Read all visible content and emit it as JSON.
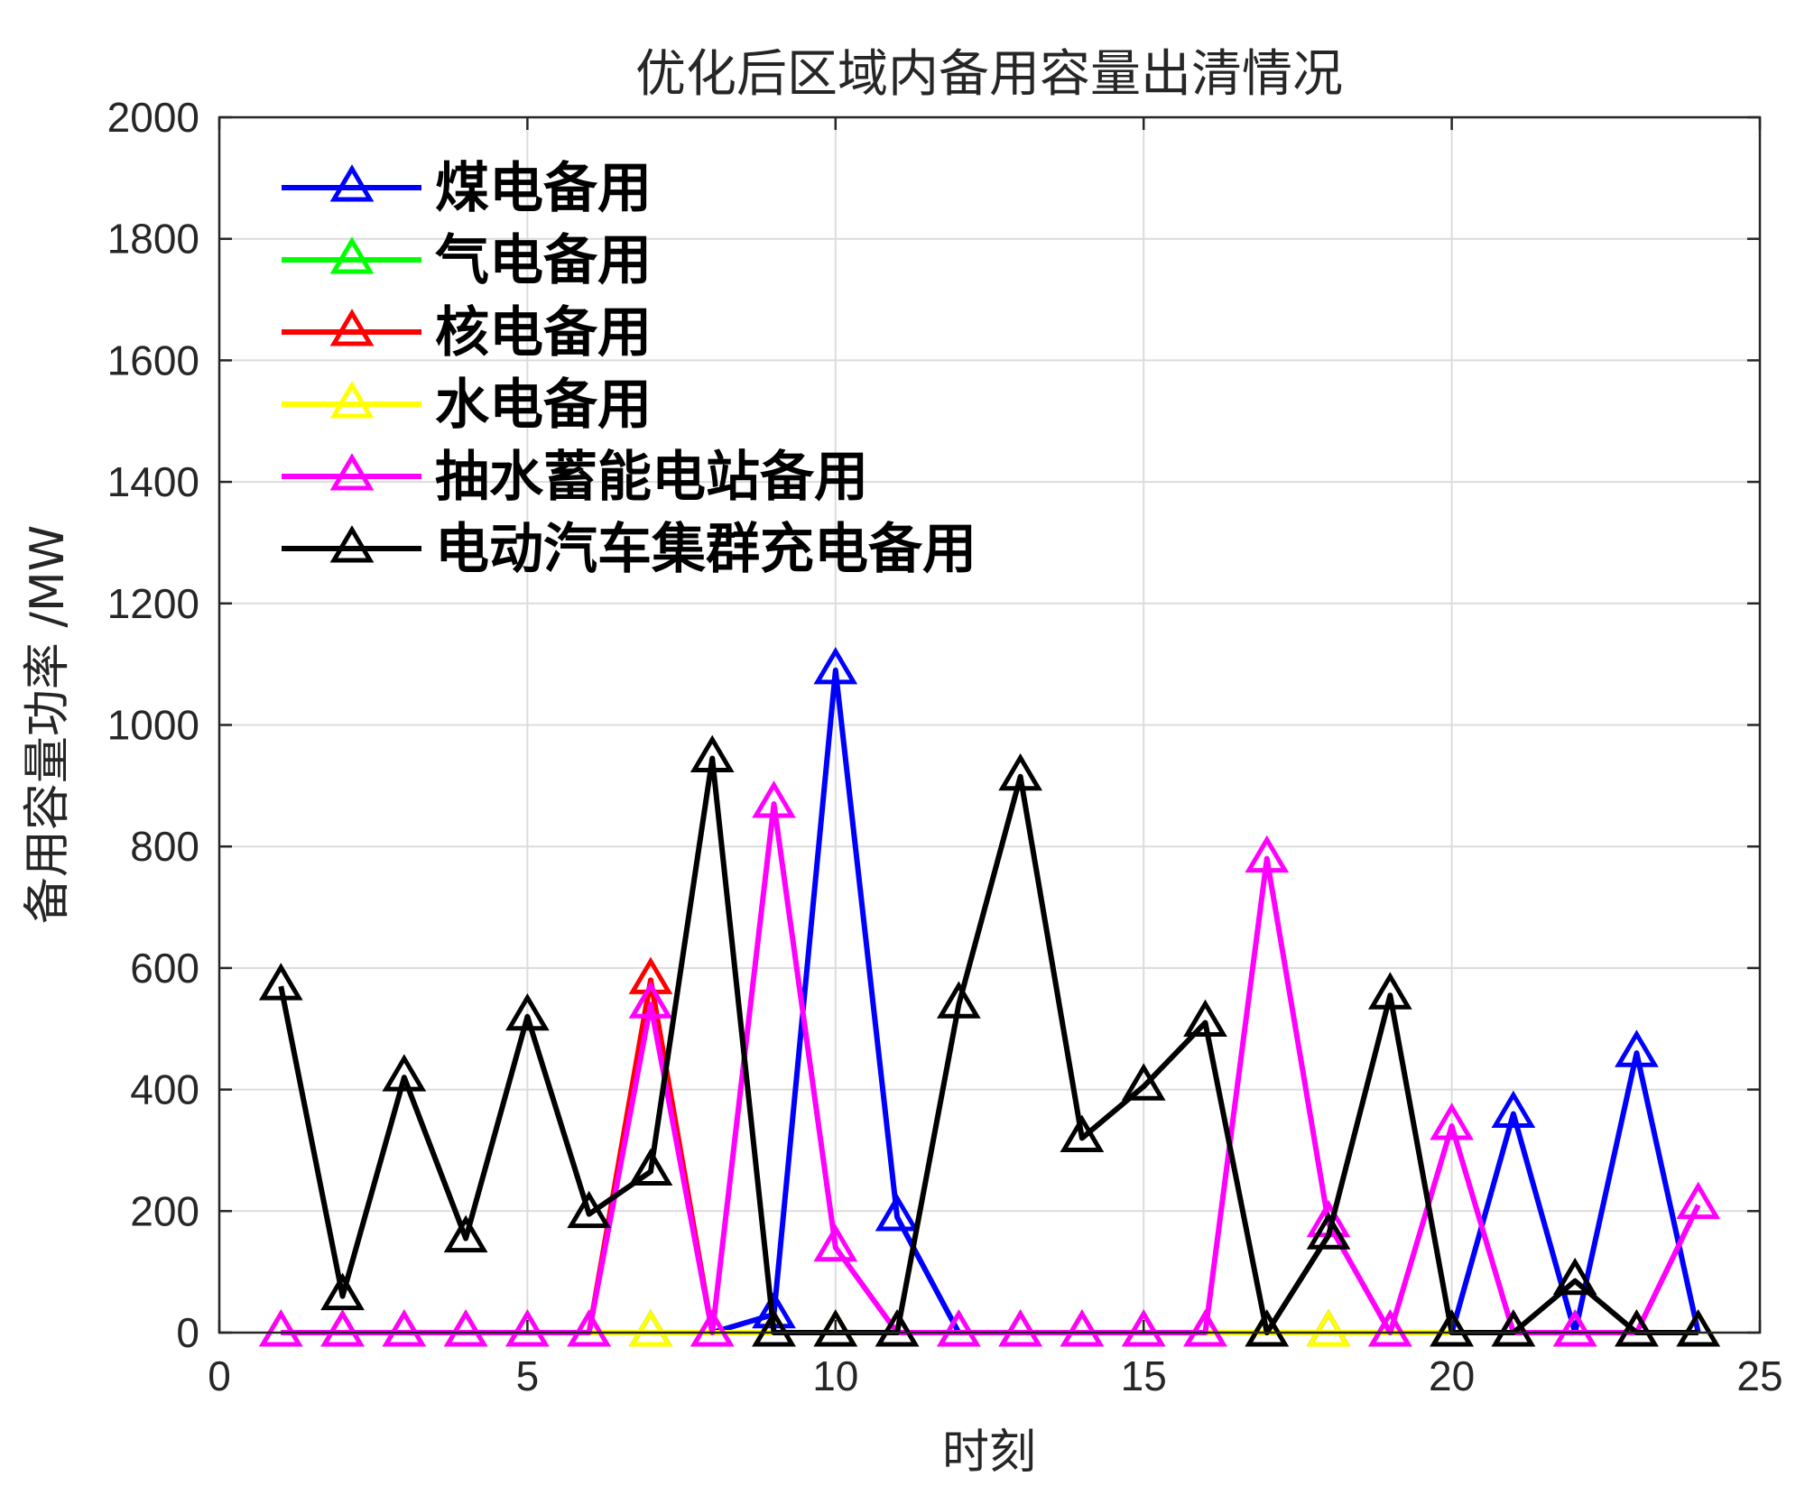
{
  "chart_data": {
    "type": "line",
    "title": "优化后区域内备用容量出清情况",
    "xlabel": "时刻",
    "ylabel": "备用容量功率 /MW",
    "xlim": [
      0,
      25
    ],
    "ylim": [
      0,
      2000
    ],
    "xticks": [
      0,
      5,
      10,
      15,
      20,
      25
    ],
    "yticks": [
      0,
      200,
      400,
      600,
      800,
      1000,
      1200,
      1400,
      1600,
      1800,
      2000
    ],
    "grid": true,
    "legend_position": "top-left",
    "x": [
      1,
      2,
      3,
      4,
      5,
      6,
      7,
      8,
      9,
      10,
      11,
      12,
      13,
      14,
      15,
      16,
      17,
      18,
      19,
      20,
      21,
      22,
      23,
      24
    ],
    "series": [
      {
        "name": "煤电备用",
        "color": "#0000ff",
        "values": [
          0,
          0,
          0,
          0,
          0,
          0,
          0,
          0,
          30,
          1090,
          190,
          0,
          0,
          0,
          0,
          0,
          0,
          0,
          0,
          0,
          360,
          0,
          460,
          0
        ]
      },
      {
        "name": "气电备用",
        "color": "#00ff00",
        "values": [
          0,
          0,
          0,
          0,
          0,
          0,
          0,
          0,
          0,
          0,
          0,
          0,
          0,
          0,
          0,
          0,
          0,
          0,
          0,
          0,
          0,
          0,
          0,
          0
        ]
      },
      {
        "name": "核电备用",
        "color": "#ff0000",
        "values": [
          0,
          0,
          0,
          0,
          0,
          0,
          580,
          0,
          0,
          0,
          0,
          0,
          0,
          0,
          0,
          0,
          0,
          0,
          0,
          0,
          0,
          0,
          0,
          0
        ]
      },
      {
        "name": "水电备用",
        "color": "#ffff00",
        "values": [
          0,
          0,
          0,
          0,
          0,
          0,
          0,
          0,
          0,
          0,
          0,
          0,
          0,
          0,
          0,
          0,
          0,
          0,
          0,
          0,
          0,
          0,
          0,
          0
        ]
      },
      {
        "name": "抽水蓄能电站备用",
        "color": "#ff00ff",
        "values": [
          0,
          0,
          0,
          0,
          0,
          0,
          540,
          0,
          870,
          140,
          0,
          0,
          0,
          0,
          0,
          0,
          780,
          180,
          0,
          340,
          0,
          0,
          0,
          210
        ]
      },
      {
        "name": "电动汽车集群充电备用",
        "color": "#000000",
        "values": [
          570,
          60,
          420,
          155,
          520,
          195,
          265,
          945,
          0,
          0,
          0,
          540,
          915,
          320,
          405,
          510,
          0,
          160,
          555,
          0,
          0,
          85,
          0,
          0
        ]
      }
    ]
  }
}
